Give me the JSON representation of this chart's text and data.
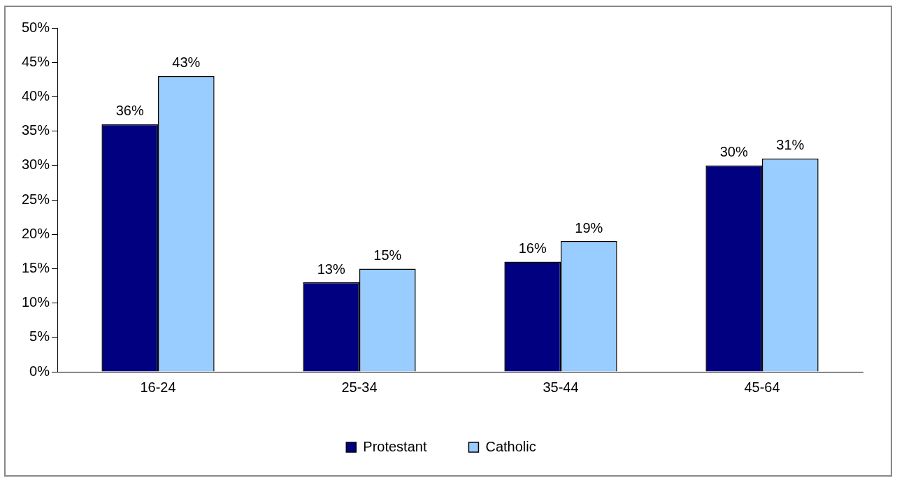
{
  "chart_data": {
    "type": "bar",
    "categories": [
      "16-24",
      "25-34",
      "35-44",
      "45-64"
    ],
    "series": [
      {
        "name": "Protestant",
        "color": "#000080",
        "values": [
          36,
          13,
          16,
          30
        ]
      },
      {
        "name": "Catholic",
        "color": "#99ccff",
        "values": [
          43,
          15,
          19,
          31
        ]
      }
    ],
    "ylim": [
      0,
      50
    ],
    "yticks": [
      {
        "value": 0,
        "label": "0%"
      },
      {
        "value": 5,
        "label": "5%"
      },
      {
        "value": 10,
        "label": "10%"
      },
      {
        "value": 15,
        "label": "15%"
      },
      {
        "value": 20,
        "label": "20%"
      },
      {
        "value": 25,
        "label": "25%"
      },
      {
        "value": 30,
        "label": "30%"
      },
      {
        "value": 35,
        "label": "35%"
      },
      {
        "value": 40,
        "label": "40%"
      },
      {
        "value": 45,
        "label": "45%"
      },
      {
        "value": 50,
        "label": "50%"
      }
    ],
    "value_labels": [
      [
        "36%",
        "13%",
        "16%",
        "30%"
      ],
      [
        "43%",
        "15%",
        "19%",
        "31%"
      ]
    ],
    "grid": false,
    "legend": "bottom"
  }
}
